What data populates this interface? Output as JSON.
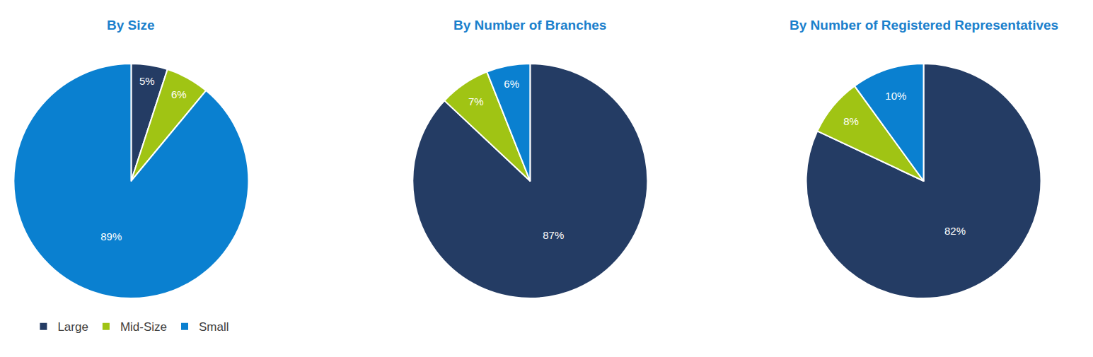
{
  "chart_data": [
    {
      "type": "pie",
      "title": "By Size",
      "categories": [
        "Large",
        "Mid-Size",
        "Small"
      ],
      "values": [
        5,
        6,
        89
      ],
      "value_labels": [
        "5%",
        "6%",
        "89%"
      ],
      "colors": [
        "#243c64",
        "#a0c414",
        "#0a80d0"
      ],
      "data_labels": true,
      "legend": "bottom"
    },
    {
      "type": "pie",
      "title": "By Number of Branches",
      "categories": [
        "Large",
        "Mid-Size",
        "Small"
      ],
      "values": [
        87,
        7,
        6
      ],
      "value_labels": [
        "87%",
        "7%",
        "6%"
      ],
      "colors": [
        "#243c64",
        "#a0c414",
        "#0a80d0"
      ],
      "data_labels": true,
      "legend": "bottom"
    },
    {
      "type": "pie",
      "title": "By Number of Registered Representatives",
      "categories": [
        "Large",
        "Mid-Size",
        "Small"
      ],
      "values": [
        82,
        8,
        10
      ],
      "value_labels": [
        "82%",
        "8%",
        "10%"
      ],
      "colors": [
        "#243c64",
        "#a0c414",
        "#0a80d0"
      ],
      "data_labels": true,
      "legend": "bottom"
    }
  ]
}
